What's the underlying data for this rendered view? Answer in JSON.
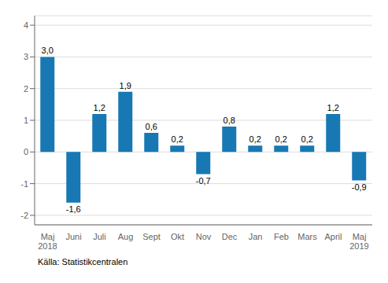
{
  "chart_data": {
    "type": "bar",
    "categories": [
      "Maj\n2018",
      "Juni",
      "Juli",
      "Aug",
      "Sept",
      "Okt",
      "Nov",
      "Dec",
      "Jan",
      "Feb",
      "Mars",
      "April",
      "Maj\n2019"
    ],
    "values": [
      3.0,
      -1.6,
      1.2,
      1.9,
      0.6,
      0.2,
      -0.7,
      0.8,
      0.2,
      0.2,
      0.2,
      1.2,
      -0.9
    ],
    "value_labels": [
      "3,0",
      "-1,6",
      "1,2",
      "1,9",
      "0,6",
      "0,2",
      "-0,7",
      "0,8",
      "0,2",
      "0,2",
      "0,2",
      "1,2",
      "-0,9"
    ],
    "data_labels": true,
    "color": "#1878b4",
    "ylim": [
      -2.3,
      4.3
    ],
    "yticks": [
      -2,
      -1,
      0,
      1,
      2,
      3,
      4
    ],
    "grid": true,
    "annotations": [
      "Källa: Statistikcentralen"
    ]
  }
}
